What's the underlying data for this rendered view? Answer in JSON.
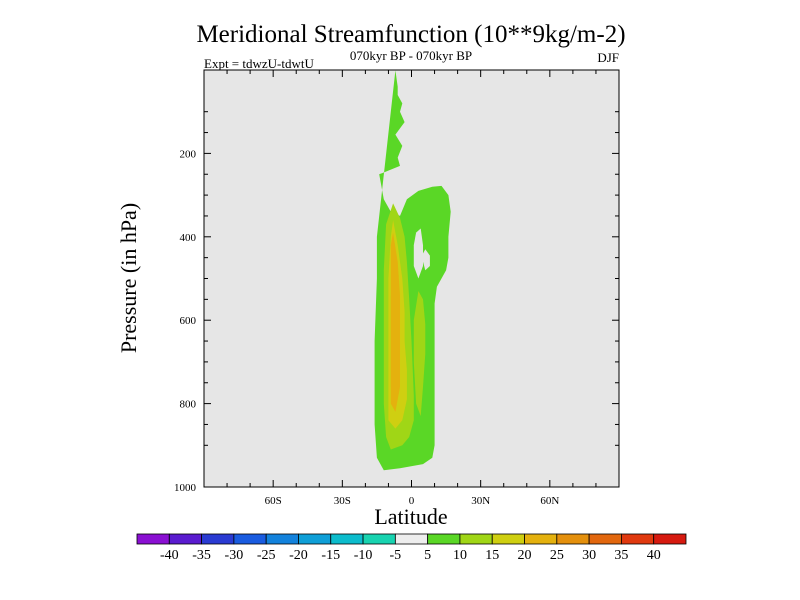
{
  "chart_data": {
    "type": "heatmap",
    "title": "Meridional Streamfunction (10**9kg/m-2)",
    "subtitle": "070kyr BP - 070kyr BP",
    "experiment_label": "Expt = tdwzU-tdwtU",
    "season_label": "DJF",
    "xlabel": "Latitude",
    "ylabel": "Pressure (in hPa)",
    "xlim": [
      -90,
      90
    ],
    "ylim": [
      1000,
      0
    ],
    "x_ticks": [
      {
        "value": -60,
        "label": "60S"
      },
      {
        "value": -30,
        "label": "30S"
      },
      {
        "value": 0,
        "label": "0"
      },
      {
        "value": 30,
        "label": "30N"
      },
      {
        "value": 60,
        "label": "60N"
      }
    ],
    "y_ticks": [
      {
        "value": 200,
        "label": "200"
      },
      {
        "value": 400,
        "label": "400"
      },
      {
        "value": 600,
        "label": "600"
      },
      {
        "value": 800,
        "label": "800"
      },
      {
        "value": 1000,
        "label": "1000"
      }
    ],
    "background_color": "#e6e6e6",
    "contour_levels": [
      {
        "level": 5,
        "color": "#5ad726"
      },
      {
        "level": 10,
        "color": "#a0d616"
      },
      {
        "level": 15,
        "color": "#cfcf11"
      },
      {
        "level": 20,
        "color": "#e4b10e"
      }
    ],
    "regions": [
      {
        "level": 5,
        "points": [
          [
            -7,
            1
          ],
          [
            -6,
            40
          ],
          [
            -6,
            60
          ],
          [
            -4,
            80
          ],
          [
            -5,
            100
          ],
          [
            -3,
            125
          ],
          [
            -7,
            155
          ],
          [
            -4,
            182
          ],
          [
            -6,
            210
          ],
          [
            -5,
            230
          ],
          [
            -14,
            250
          ],
          [
            -12,
            310
          ],
          [
            -9,
            340
          ],
          [
            -5,
            350
          ],
          [
            -2,
            310
          ],
          [
            3,
            290
          ],
          [
            9,
            280
          ],
          [
            13,
            278
          ],
          [
            16,
            300
          ],
          [
            17,
            340
          ],
          [
            16,
            400
          ],
          [
            16,
            450
          ],
          [
            15,
            480
          ],
          [
            11,
            520
          ],
          [
            10,
            560
          ],
          [
            10,
            630
          ],
          [
            10,
            720
          ],
          [
            10,
            800
          ],
          [
            10,
            900
          ],
          [
            9,
            930
          ],
          [
            5,
            945
          ],
          [
            -5,
            955
          ],
          [
            -12,
            960
          ],
          [
            -15,
            930
          ],
          [
            -16,
            850
          ],
          [
            -16,
            750
          ],
          [
            -16,
            650
          ],
          [
            -15,
            500
          ],
          [
            -15,
            400
          ]
        ]
      },
      {
        "level": 10,
        "points": [
          [
            -8,
            320
          ],
          [
            -5,
            355
          ],
          [
            -3,
            400
          ],
          [
            -2,
            460
          ],
          [
            -1,
            550
          ],
          [
            0,
            650
          ],
          [
            1,
            780
          ],
          [
            1,
            840
          ],
          [
            -1,
            880
          ],
          [
            -4,
            900
          ],
          [
            -9,
            910
          ],
          [
            -11,
            880
          ],
          [
            -12,
            800
          ],
          [
            -12,
            650
          ],
          [
            -12,
            480
          ],
          [
            -11,
            370
          ]
        ]
      },
      {
        "level": 15,
        "points": [
          [
            -8,
            360
          ],
          [
            -6,
            420
          ],
          [
            -4,
            500
          ],
          [
            -3,
            580
          ],
          [
            -3,
            650
          ],
          [
            -2,
            720
          ],
          [
            -2,
            790
          ],
          [
            -4,
            840
          ],
          [
            -7,
            860
          ],
          [
            -10,
            840
          ],
          [
            -10,
            760
          ],
          [
            -10,
            650
          ],
          [
            -10,
            500
          ],
          [
            -9,
            400
          ]
        ]
      },
      {
        "level": 20,
        "points": [
          [
            -8,
            390
          ],
          [
            -6,
            460
          ],
          [
            -5,
            540
          ],
          [
            -5,
            620
          ],
          [
            -5,
            700
          ],
          [
            -5,
            760
          ],
          [
            -7,
            820
          ],
          [
            -9,
            800
          ],
          [
            -9,
            720
          ],
          [
            -9,
            600
          ],
          [
            -9,
            480
          ],
          [
            -9,
            420
          ]
        ]
      },
      {
        "level": 10,
        "points": [
          [
            3,
            530
          ],
          [
            5,
            550
          ],
          [
            6,
            610
          ],
          [
            6,
            680
          ],
          [
            5,
            760
          ],
          [
            4,
            830
          ],
          [
            2,
            800
          ],
          [
            1,
            700
          ],
          [
            1,
            600
          ]
        ]
      },
      {
        "level": 0,
        "points": [
          [
            4,
            380
          ],
          [
            5,
            420
          ],
          [
            5,
            470
          ],
          [
            3,
            500
          ],
          [
            1,
            470
          ],
          [
            1,
            420
          ],
          [
            2,
            390
          ]
        ]
      },
      {
        "level": 0,
        "points": [
          [
            6,
            430
          ],
          [
            8,
            445
          ],
          [
            8,
            470
          ],
          [
            6,
            480
          ],
          [
            5,
            460
          ],
          [
            5,
            440
          ]
        ]
      }
    ],
    "colorbar": {
      "labels": [
        "-40",
        "-35",
        "-30",
        "-25",
        "-20",
        "-15",
        "-10",
        "-5",
        "5",
        "10",
        "15",
        "20",
        "25",
        "30",
        "35",
        "40"
      ],
      "colors": [
        "#8a10d2",
        "#5a1bcf",
        "#2a3bd2",
        "#1a5ce0",
        "#1382dc",
        "#0f9fd7",
        "#0cbccc",
        "#18d3b0",
        "#eeeeee",
        "#5ad726",
        "#a0d616",
        "#cfcf11",
        "#e4b10e",
        "#e4900d",
        "#e2670e",
        "#e0390f",
        "#d61a10"
      ]
    }
  }
}
